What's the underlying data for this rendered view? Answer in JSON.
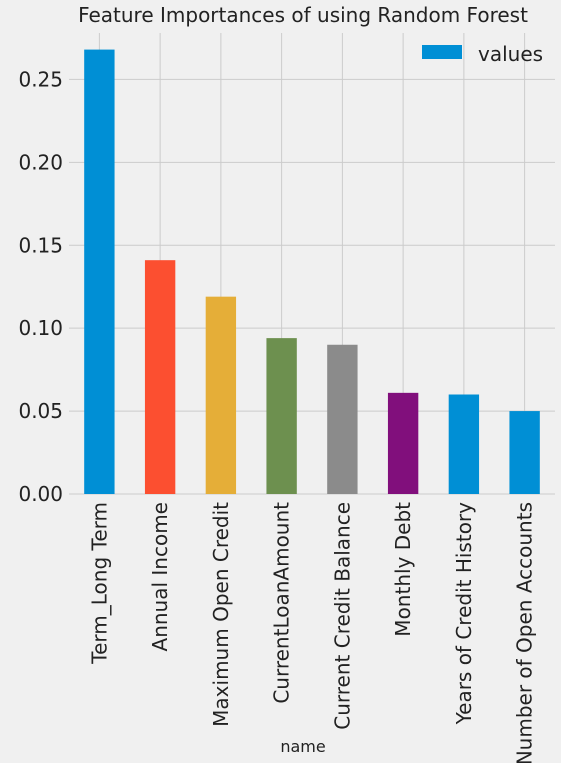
{
  "chart_data": {
    "type": "bar",
    "title": "Feature Importances of using Random Forest",
    "xlabel": "name",
    "ylabel": "",
    "categories": [
      "Term_Long Term",
      "Annual Income",
      "Maximum Open Credit",
      "CurrentLoanAmount",
      "Current Credit Balance",
      "Monthly Debt",
      "Years of Credit History",
      "Number of Open Accounts"
    ],
    "series": [
      {
        "name": "values",
        "values": [
          0.268,
          0.141,
          0.119,
          0.094,
          0.09,
          0.061,
          0.06,
          0.05
        ]
      }
    ],
    "bar_colors": [
      "#008fd5",
      "#fc4f30",
      "#e5ae38",
      "#6d904f",
      "#8b8b8b",
      "#810f7c",
      "#008fd5",
      "#008fd5"
    ],
    "ylim": [
      0,
      0.278
    ],
    "yticks": [
      0.0,
      0.05,
      0.1,
      0.15,
      0.2,
      0.25
    ],
    "ytick_labels": [
      "0.00",
      "0.05",
      "0.10",
      "0.15",
      "0.20",
      "0.25"
    ],
    "grid": true,
    "legend": {
      "position": "top-right",
      "color": "#008fd5"
    }
  }
}
